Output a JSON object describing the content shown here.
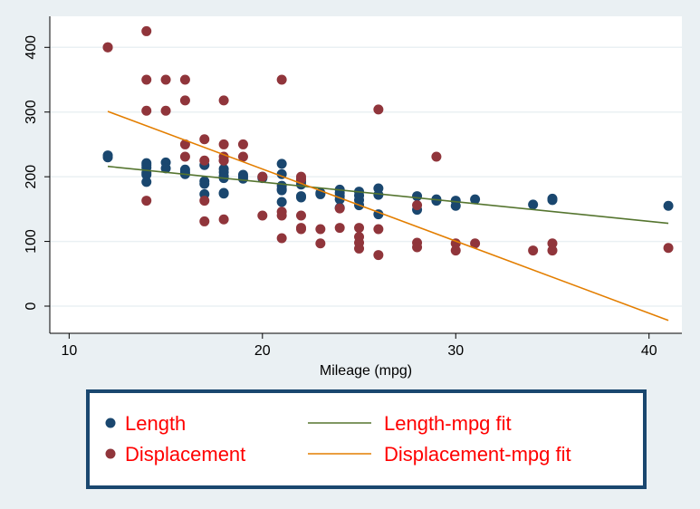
{
  "chart_data": {
    "type": "scatter",
    "xlabel": "Mileage (mpg)",
    "ylabel": "",
    "xlim": [
      9,
      41.7
    ],
    "ylim": [
      -42,
      448
    ],
    "xticks": [
      10,
      20,
      30,
      40
    ],
    "yticks": [
      0,
      100,
      200,
      300,
      400
    ],
    "grid": "horizontal",
    "legend_position": "bottom",
    "series": [
      {
        "name": "Length",
        "kind": "scatter",
        "color": "#1a476f",
        "points": [
          [
            12,
            233
          ],
          [
            12,
            230
          ],
          [
            14,
            221
          ],
          [
            14,
            218
          ],
          [
            14,
            214
          ],
          [
            14,
            206
          ],
          [
            14,
            203
          ],
          [
            14,
            192
          ],
          [
            15,
            222
          ],
          [
            15,
            213
          ],
          [
            16,
            211
          ],
          [
            16,
            207
          ],
          [
            16,
            204
          ],
          [
            17,
            218
          ],
          [
            17,
            193
          ],
          [
            17,
            189
          ],
          [
            17,
            173
          ],
          [
            18,
            212
          ],
          [
            18,
            207
          ],
          [
            18,
            201
          ],
          [
            18,
            198
          ],
          [
            18,
            175
          ],
          [
            18,
            174
          ],
          [
            19,
            203
          ],
          [
            19,
            200
          ],
          [
            19,
            197
          ],
          [
            20,
            200
          ],
          [
            20,
            198
          ],
          [
            21,
            220
          ],
          [
            21,
            204
          ],
          [
            21,
            186
          ],
          [
            21,
            181
          ],
          [
            21,
            179
          ],
          [
            21,
            161
          ],
          [
            22,
            196
          ],
          [
            22,
            192
          ],
          [
            22,
            188
          ],
          [
            22,
            170
          ],
          [
            22,
            168
          ],
          [
            23,
            175
          ],
          [
            23,
            173
          ],
          [
            24,
            180
          ],
          [
            24,
            175
          ],
          [
            24,
            170
          ],
          [
            24,
            165
          ],
          [
            24,
            152
          ],
          [
            25,
            177
          ],
          [
            25,
            171
          ],
          [
            25,
            164
          ],
          [
            25,
            156
          ],
          [
            26,
            182
          ],
          [
            26,
            172
          ],
          [
            26,
            142
          ],
          [
            28,
            170
          ],
          [
            28,
            149
          ],
          [
            29,
            165
          ],
          [
            29,
            163
          ],
          [
            30,
            163
          ],
          [
            30,
            155
          ],
          [
            31,
            165
          ],
          [
            34,
            157
          ],
          [
            35,
            166
          ],
          [
            35,
            164
          ],
          [
            41,
            155
          ]
        ]
      },
      {
        "name": "Displacement",
        "kind": "scatter",
        "color": "#90353b",
        "points": [
          [
            12,
            400
          ],
          [
            12,
            400
          ],
          [
            14,
            425
          ],
          [
            14,
            350
          ],
          [
            14,
            302
          ],
          [
            14,
            163
          ],
          [
            15,
            350
          ],
          [
            15,
            302
          ],
          [
            16,
            350
          ],
          [
            16,
            318
          ],
          [
            16,
            250
          ],
          [
            16,
            231
          ],
          [
            17,
            258
          ],
          [
            17,
            225
          ],
          [
            17,
            163
          ],
          [
            17,
            131
          ],
          [
            18,
            318
          ],
          [
            18,
            250
          ],
          [
            18,
            231
          ],
          [
            18,
            225
          ],
          [
            18,
            225
          ],
          [
            18,
            134
          ],
          [
            19,
            250
          ],
          [
            19,
            231
          ],
          [
            20,
            200
          ],
          [
            20,
            140
          ],
          [
            21,
            350
          ],
          [
            21,
            146
          ],
          [
            21,
            140
          ],
          [
            21,
            105
          ],
          [
            22,
            200
          ],
          [
            22,
            196
          ],
          [
            22,
            140
          ],
          [
            22,
            121
          ],
          [
            22,
            119
          ],
          [
            23,
            119
          ],
          [
            23,
            97
          ],
          [
            24,
            151
          ],
          [
            24,
            121
          ],
          [
            25,
            121
          ],
          [
            25,
            107
          ],
          [
            25,
            98
          ],
          [
            25,
            89
          ],
          [
            26,
            304
          ],
          [
            26,
            119
          ],
          [
            26,
            79
          ],
          [
            28,
            156
          ],
          [
            28,
            98
          ],
          [
            28,
            91
          ],
          [
            29,
            231
          ],
          [
            30,
            97
          ],
          [
            30,
            86
          ],
          [
            31,
            97
          ],
          [
            34,
            86
          ],
          [
            35,
            97
          ],
          [
            35,
            86
          ],
          [
            41,
            90
          ]
        ]
      },
      {
        "name": "Length-mpg fit",
        "kind": "line",
        "color": "#55752f",
        "points": [
          [
            12,
            216
          ],
          [
            41,
            128
          ]
        ]
      },
      {
        "name": "Displacement-mpg fit",
        "kind": "line",
        "color": "#e37e00",
        "points": [
          [
            12,
            301
          ],
          [
            41,
            -22
          ]
        ]
      }
    ]
  },
  "legend": {
    "items": [
      {
        "label": "Length",
        "color": "#1a476f",
        "kind": "dot"
      },
      {
        "label": "Length-mpg fit",
        "color": "#55752f",
        "kind": "line"
      },
      {
        "label": "Displacement",
        "color": "#90353b",
        "kind": "dot"
      },
      {
        "label": "Displacement-mpg fit",
        "color": "#e37e00",
        "kind": "line"
      }
    ],
    "text_color": "#ff0000",
    "border_color": "#1a476f"
  }
}
